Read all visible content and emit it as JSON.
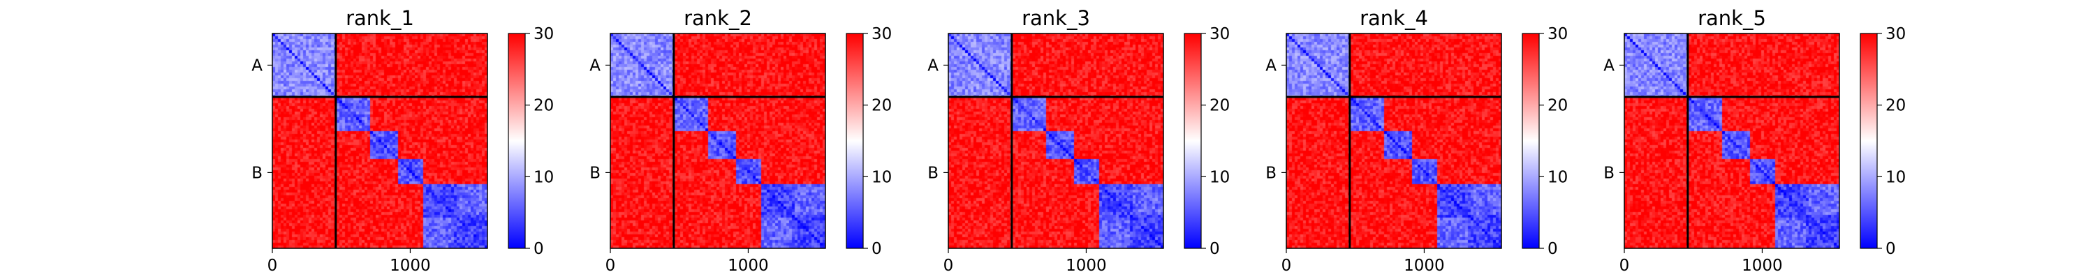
{
  "chart_data": {
    "type": "heatmap",
    "description_note": "",
    "colormap": {
      "name": "bwr",
      "low_color": "#0000ff",
      "mid_color": "#ffffff",
      "high_color": "#ff0000",
      "range": [
        0,
        30
      ]
    },
    "colorbar_ticks": [
      0,
      10,
      20,
      30
    ],
    "x_ticks": [
      0,
      1000
    ],
    "x_range": [
      0,
      1560
    ],
    "y_range": [
      0,
      1560
    ],
    "chain_boundary": 460,
    "chains": [
      {
        "label": "A",
        "start": 0,
        "end": 460
      },
      {
        "label": "B",
        "start": 460,
        "end": 1560
      }
    ],
    "panels": [
      {
        "title": "rank_1"
      },
      {
        "title": "rank_2"
      },
      {
        "title": "rank_3"
      },
      {
        "title": "rank_4"
      },
      {
        "title": "rank_5"
      }
    ],
    "low_error_blocks": [
      {
        "range": [
          0,
          460
        ],
        "value": 8
      },
      {
        "range": [
          460,
          700
        ],
        "value": 6
      },
      {
        "range": [
          700,
          920
        ],
        "value": 5
      },
      {
        "range": [
          920,
          1100
        ],
        "value": 5
      },
      {
        "range": [
          1100,
          1560
        ],
        "value": 4
      }
    ],
    "low_error_offdiag_blocks": [
      {
        "rows": [
          1100,
          1320
        ],
        "cols": [
          1340,
          1560
        ],
        "value": 6
      },
      {
        "rows": [
          1340,
          1560
        ],
        "cols": [
          1100,
          1320
        ],
        "value": 6
      }
    ],
    "background_value": 29
  }
}
